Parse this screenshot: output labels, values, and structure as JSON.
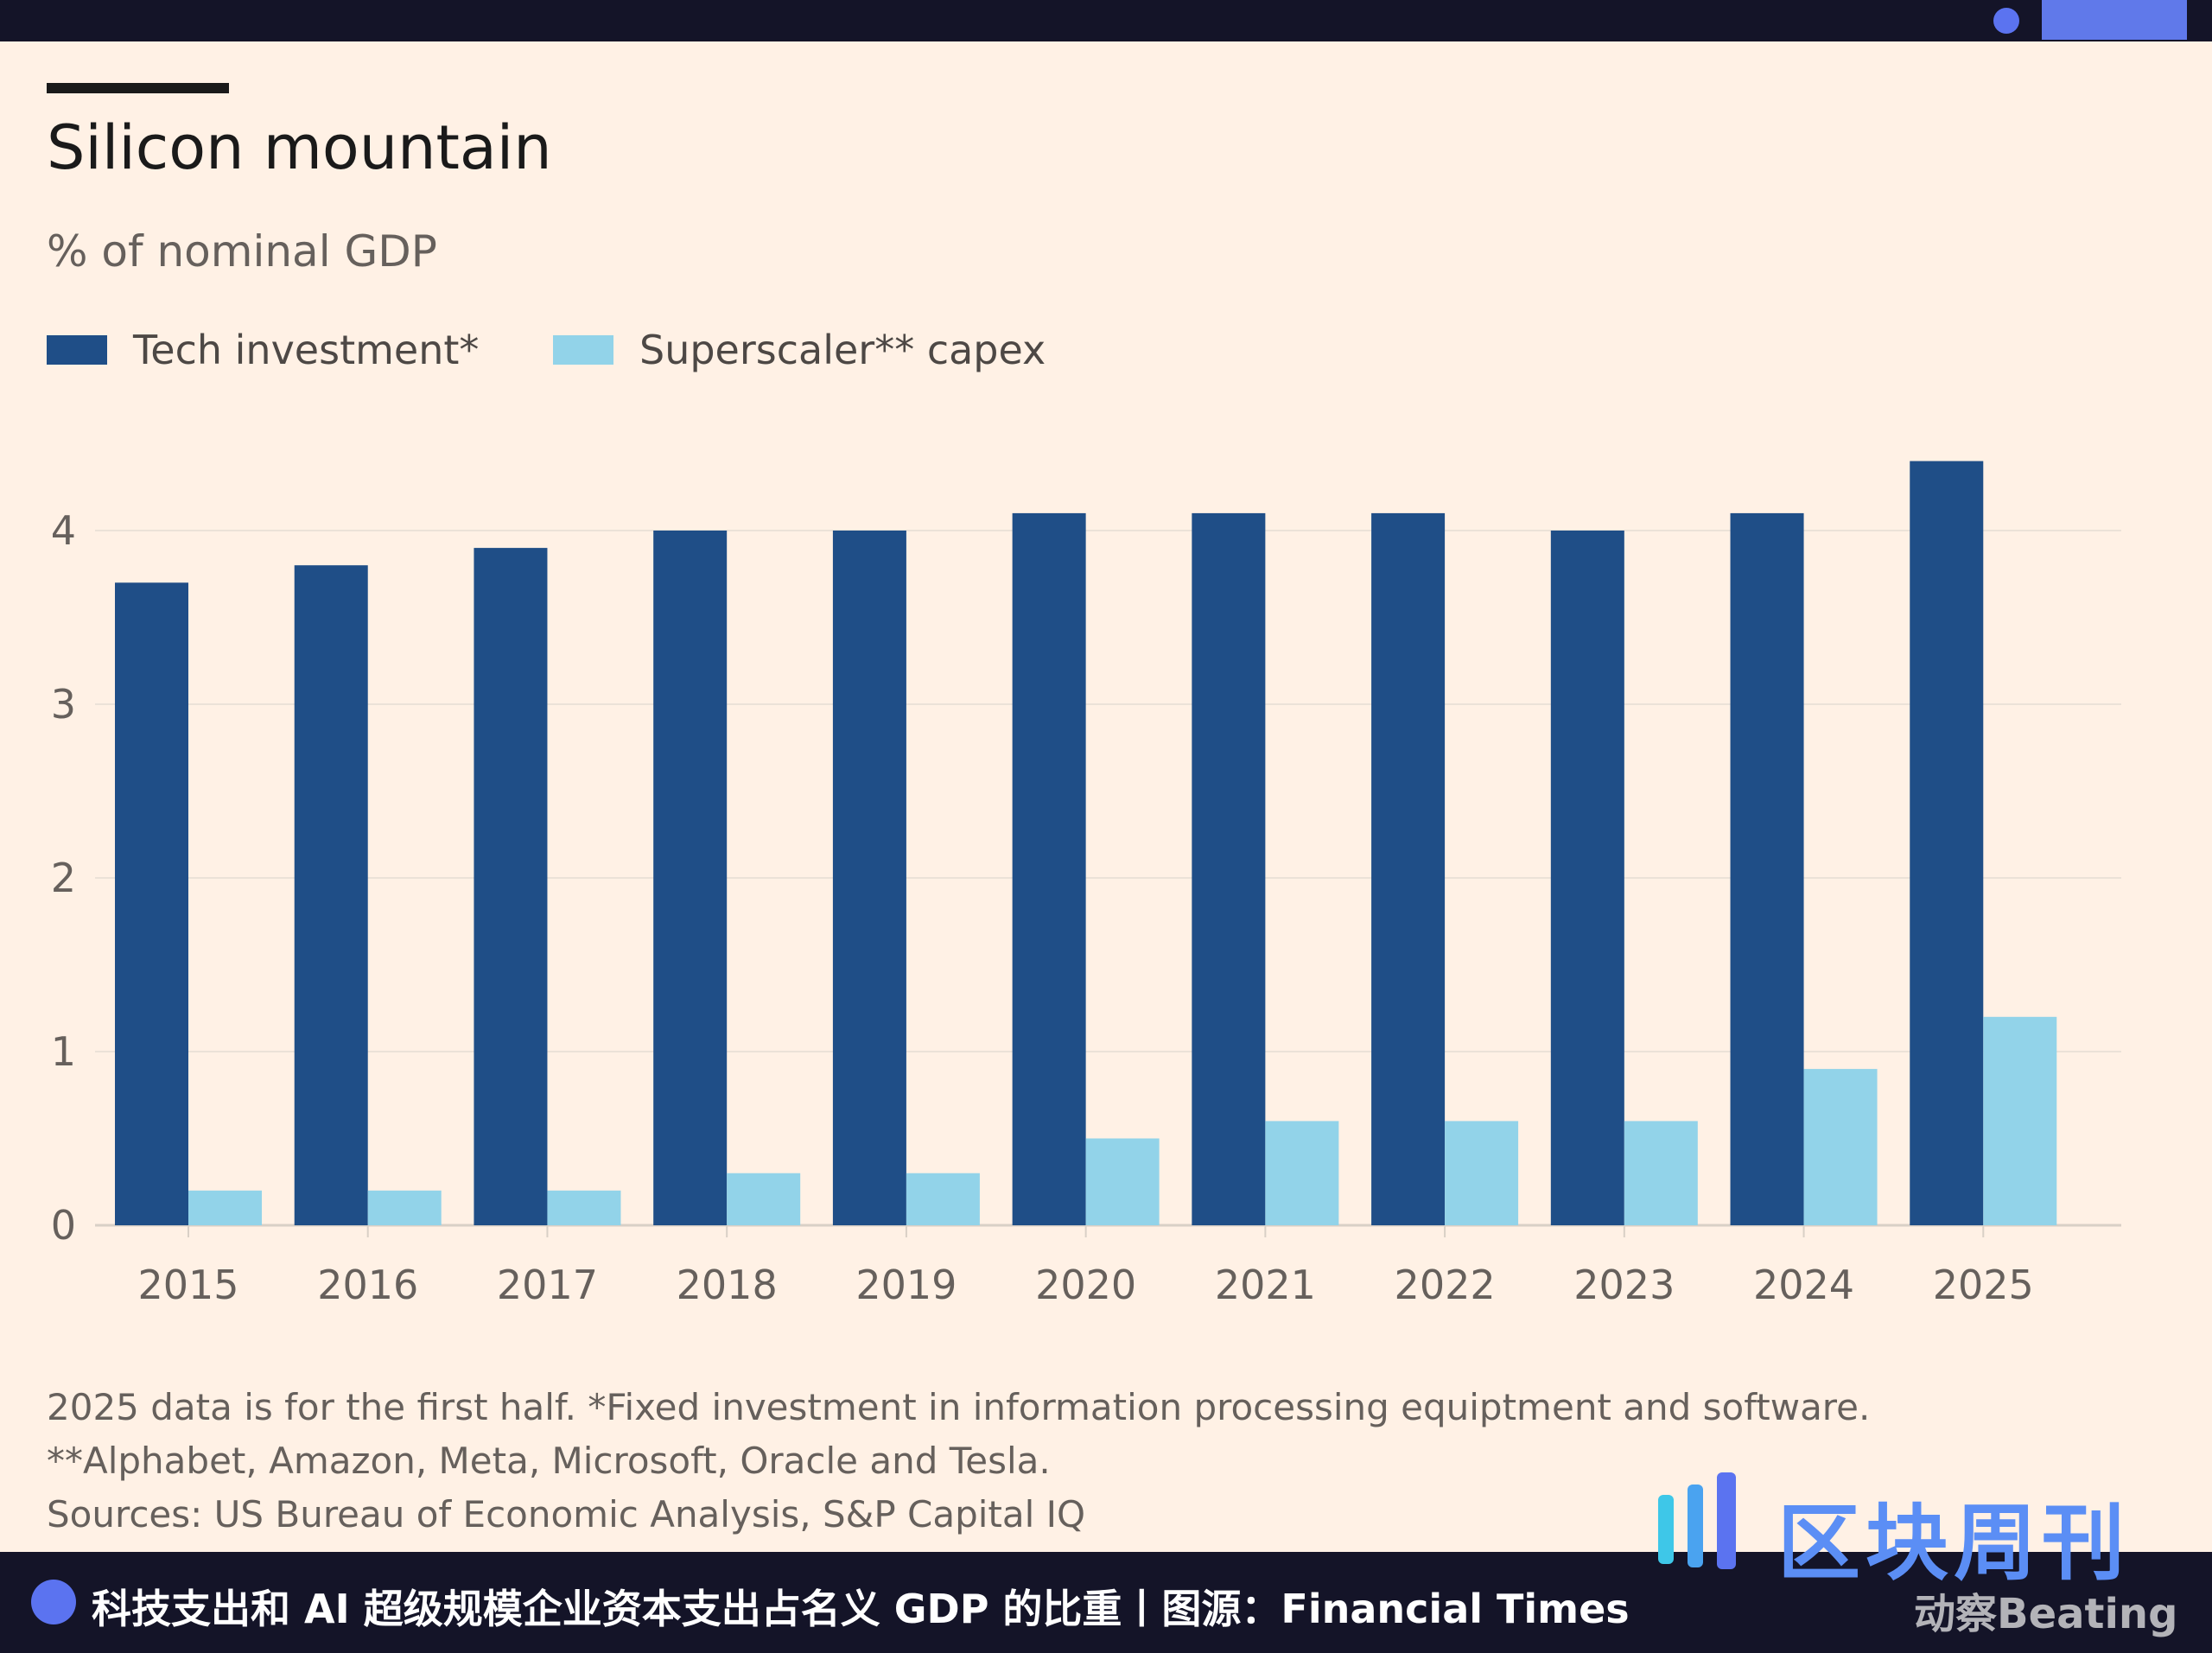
{
  "colors": {
    "tech": "#1f4e87",
    "superscaler": "#92d3e9",
    "grid": "#ebe2d8",
    "axis_text": "#66605c"
  },
  "chart_data": {
    "type": "bar",
    "title": "Silicon mountain",
    "subtitle": "% of nominal GDP",
    "categories": [
      "2015",
      "2016",
      "2017",
      "2018",
      "2019",
      "2020",
      "2021",
      "2022",
      "2023",
      "2024",
      "2025"
    ],
    "series": [
      {
        "name": "Tech investment*",
        "values": [
          3.7,
          3.8,
          3.9,
          4.0,
          4.0,
          4.1,
          4.1,
          4.1,
          4.0,
          4.1,
          4.4
        ]
      },
      {
        "name": "Superscaler** capex",
        "values": [
          0.2,
          0.2,
          0.2,
          0.3,
          0.3,
          0.5,
          0.6,
          0.6,
          0.6,
          0.9,
          1.2
        ]
      }
    ],
    "yticks": [
      "0",
      "1",
      "2",
      "3",
      "4"
    ],
    "ylim": [
      0,
      4.5
    ],
    "xlabel": "",
    "ylabel": "",
    "grid": true,
    "legend": "top-left"
  },
  "notes": {
    "line1": "2025 data is for the first half. *Fixed investment in information processing equiptment and software.",
    "line2": "**Alphabet, Amazon, Meta, Microsoft, Oracle and Tesla.",
    "line3": "Sources: US Bureau of Economic Analysis, S&P Capital IQ"
  },
  "footer": {
    "caption": "科技支出和 AI 超级规模企业资本支出占名义 GDP 的比重丨图源：Financial Times"
  },
  "watermark": {
    "name": "区块周刊",
    "sub": "动察Beating"
  }
}
